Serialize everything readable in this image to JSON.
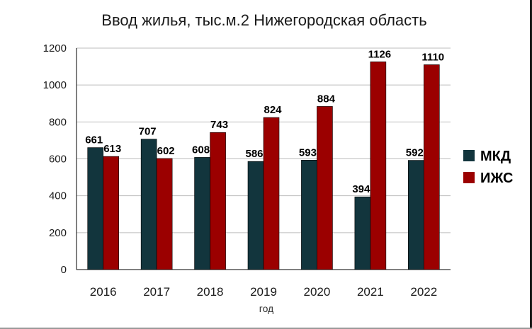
{
  "chart_data": {
    "type": "bar",
    "title": "Ввод жилья, тыс.м.2  Нижегородская область",
    "xlabel": "год",
    "ylabel": "",
    "categories": [
      "2016",
      "2017",
      "2018",
      "2019",
      "2020",
      "2021",
      "2022"
    ],
    "series": [
      {
        "name": "МКД",
        "color": "#12353d",
        "values": [
          661,
          707,
          608,
          586,
          593,
          394,
          592
        ]
      },
      {
        "name": "ИЖС",
        "color": "#9b0000",
        "values": [
          613,
          602,
          743,
          824,
          884,
          1126,
          1110
        ]
      }
    ],
    "ylim": [
      0,
      1200
    ],
    "yticks": [
      0,
      200,
      400,
      600,
      800,
      1000,
      1200
    ],
    "grid": true,
    "legend": "right"
  }
}
